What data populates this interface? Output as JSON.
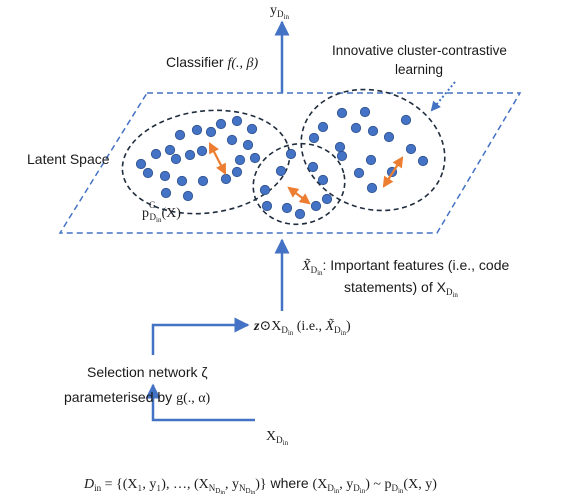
{
  "labels": {
    "output_y": "y",
    "output_y_sub": "D",
    "output_y_subsub": "in",
    "classifier_text": "Classifier ",
    "classifier_math": "f(., β)",
    "innovative_line1": "Innovative cluster-contrastive",
    "innovative_line2": "learning",
    "latent_space": "Latent Space",
    "p_base": "p",
    "p_sup": "G",
    "p_sub": "D",
    "p_subsub": "in",
    "p_arg": "(X)",
    "xtilde_sym": "X̃",
    "xtilde_sub": "D",
    "xtilde_subsub": "in",
    "important_line1": ": Important features (i.e., code",
    "important_line2": "statements) of X",
    "important_sub": "D",
    "important_subsub": "in",
    "z_sym": "z",
    "odot": "⊙",
    "zx_X": "X",
    "zx_sub": "D",
    "zx_subsub": "in",
    "zx_ie": " (i.e., ",
    "zx_xt": "X̃",
    "zx_xt_sub": "D",
    "zx_xt_subsub": "in",
    "zx_close": ")",
    "selection_line1": "Selection network ζ",
    "selection_line2_a": "parameterised by ",
    "selection_line2_b": "g(., α)",
    "input_X": "X",
    "input_sub": "D",
    "input_subsub": "in",
    "dataset_formula": "D_in = {(X1, y1), …, (XN_Din, yN_Din)} where (XDin, yDin) ~ pDin(X, y)",
    "dataset_D": "D",
    "dataset_in": "in",
    "dataset_eq": " = ",
    "dataset_set": "{(X₁, y₁), …, (X",
    "dataset_N": "N",
    "dataset_N_sub": "D",
    "dataset_N_subsub": "in",
    "dataset_mid": ", y",
    "dataset_close": ")}",
    "dataset_where": " where ",
    "dataset_pair_open": "(X",
    "dataset_pair_mid": ", y",
    "dataset_pair_close": ")",
    "dataset_tilde": " ~ p",
    "dataset_xy": "(X, y)"
  },
  "colors": {
    "arrow": "#4472c4",
    "dot": "#4472c4",
    "dot_stroke": "#2f528f",
    "cluster": "#1f2d3d",
    "contrast_arrow": "#ed7d31",
    "text": "#1a1a1a"
  }
}
